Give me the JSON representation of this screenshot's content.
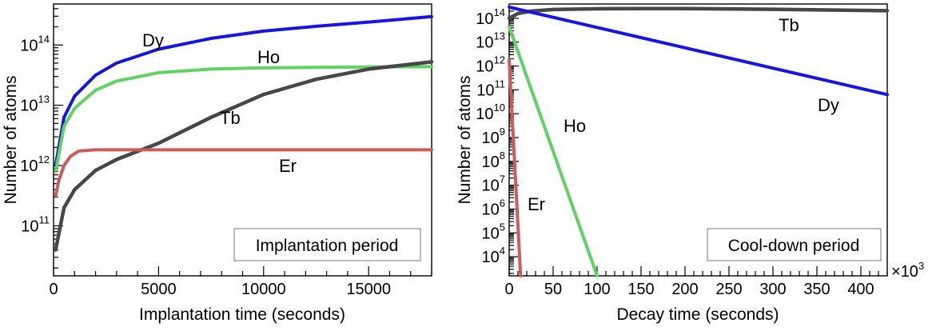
{
  "colors": {
    "Dy": "#1515e6",
    "Ho": "#5fd35f",
    "Tb": "#474747",
    "Er": "#d05a5a"
  },
  "chart_data": [
    {
      "id": "implantation",
      "type": "line",
      "yscale": "log",
      "xlabel": "Implantation time (seconds)",
      "ylabel": "Number of atoms",
      "box_label": "Implantation period",
      "xlim": [
        0,
        18000
      ],
      "ylim_exp": [
        10.17,
        14.68
      ],
      "x_ticks": [
        0,
        5000,
        10000,
        15000
      ],
      "x_tick_labels": [
        "0",
        "5000",
        "10000",
        "15000"
      ],
      "y_tick_exps": [
        11,
        12,
        13,
        14
      ],
      "y_tick_labels": [
        {
          "base": "10",
          "exp": "11"
        },
        {
          "base": "10",
          "exp": "12"
        },
        {
          "base": "10",
          "exp": "13"
        },
        {
          "base": "10",
          "exp": "14"
        }
      ],
      "series": [
        {
          "name": "Dy",
          "label": "Dy",
          "x": [
            100,
            500,
            1000,
            2000,
            3000,
            5000,
            7500,
            10000,
            12500,
            15000,
            18000
          ],
          "log10y": [
            12.0,
            12.8,
            13.15,
            13.5,
            13.7,
            13.93,
            14.11,
            14.23,
            14.31,
            14.38,
            14.47
          ]
        },
        {
          "name": "Ho",
          "label": "Ho",
          "x": [
            100,
            500,
            1000,
            2000,
            3000,
            5000,
            7500,
            10000,
            12500,
            15000,
            18000
          ],
          "log10y": [
            11.9,
            12.65,
            12.95,
            13.25,
            13.4,
            13.54,
            13.6,
            13.62,
            13.63,
            13.635,
            13.64
          ]
        },
        {
          "name": "Tb",
          "label": "Tb",
          "x": [
            100,
            500,
            1000,
            2000,
            3000,
            5000,
            7500,
            10000,
            12500,
            15000,
            18000
          ],
          "log10y": [
            10.6,
            11.3,
            11.6,
            11.92,
            12.1,
            12.37,
            12.8,
            13.18,
            13.43,
            13.6,
            13.72
          ]
        },
        {
          "name": "Er",
          "label": "Er",
          "x": [
            100,
            250,
            500,
            800,
            1200,
            2000,
            5000,
            10000,
            15000,
            18000
          ],
          "log10y": [
            11.5,
            11.75,
            12.0,
            12.15,
            12.24,
            12.26,
            12.26,
            12.26,
            12.26,
            12.26
          ]
        }
      ]
    },
    {
      "id": "cooldown",
      "type": "line",
      "yscale": "log",
      "xlabel": "Decay time (seconds)",
      "ylabel": "Number of atoms",
      "box_label": "Cool-down period",
      "x_multiplier_base": "10",
      "x_multiplier_exp": "3",
      "xlim": [
        0,
        430
      ],
      "ylim_exp": [
        3.2,
        14.6
      ],
      "x_ticks": [
        0,
        50,
        100,
        150,
        200,
        250,
        300,
        350,
        400
      ],
      "x_tick_labels": [
        "0",
        "50",
        "100",
        "150",
        "200",
        "250",
        "300",
        "350",
        "400"
      ],
      "y_tick_exps": [
        4,
        5,
        6,
        7,
        8,
        9,
        10,
        11,
        12,
        13,
        14
      ],
      "y_tick_labels": [
        {
          "base": "10",
          "exp": "4"
        },
        {
          "base": "10",
          "exp": "5"
        },
        {
          "base": "10",
          "exp": "6"
        },
        {
          "base": "10",
          "exp": "7"
        },
        {
          "base": "10",
          "exp": "8"
        },
        {
          "base": "10",
          "exp": "9"
        },
        {
          "base": "10",
          "exp": "10"
        },
        {
          "base": "10",
          "exp": "11"
        },
        {
          "base": "10",
          "exp": "12"
        },
        {
          "base": "10",
          "exp": "13"
        },
        {
          "base": "10",
          "exp": "14"
        }
      ],
      "series": [
        {
          "name": "Tb",
          "label": "Tb",
          "x": [
            0,
            10,
            25,
            50,
            100,
            150,
            200,
            300,
            430
          ],
          "log10y": [
            14.0,
            14.2,
            14.3,
            14.37,
            14.4,
            14.41,
            14.41,
            14.38,
            14.32
          ]
        },
        {
          "name": "Dy",
          "label": "Dy",
          "x": [
            0,
            430
          ],
          "log10y": [
            14.47,
            10.8
          ]
        },
        {
          "name": "Ho",
          "label": "Ho",
          "x": [
            0,
            100
          ],
          "log10y": [
            13.64,
            3.2
          ]
        },
        {
          "name": "Er",
          "label": "Er",
          "x": [
            0,
            13
          ],
          "log10y": [
            12.26,
            3.2
          ]
        }
      ]
    }
  ]
}
